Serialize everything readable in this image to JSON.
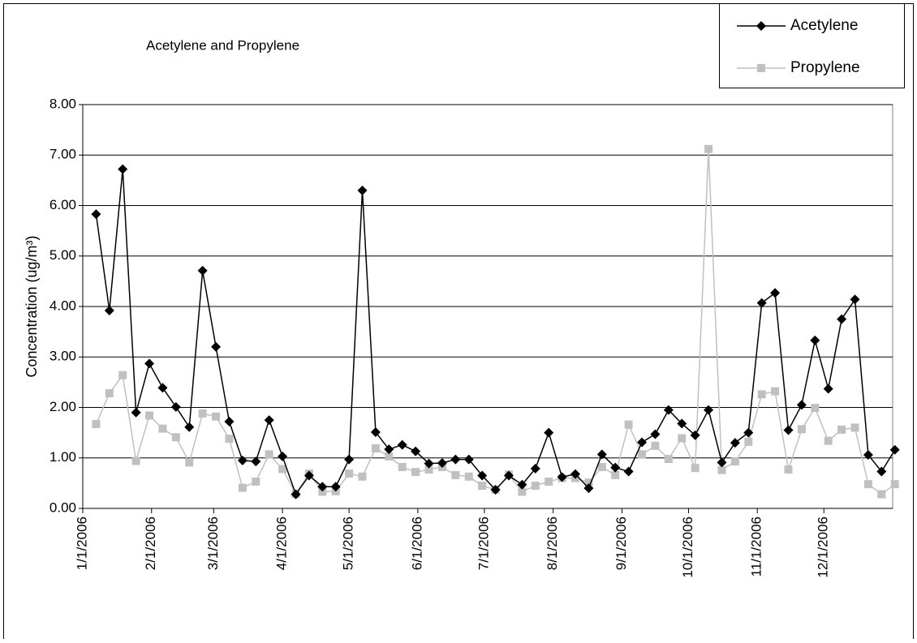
{
  "chart_data": {
    "type": "line",
    "title": "Acetylene and Propylene",
    "y_label": "Concentration (ug/m³)",
    "x": [
      "1/7/2006",
      "1/13/2006",
      "1/19/2006",
      "1/25/2006",
      "1/31/2006",
      "2/6/2006",
      "2/12/2006",
      "2/18/2006",
      "2/24/2006",
      "3/2/2006",
      "3/8/2006",
      "3/14/2006",
      "3/20/2006",
      "3/26/2006",
      "4/1/2006",
      "4/7/2006",
      "4/13/2006",
      "4/19/2006",
      "4/25/2006",
      "5/1/2006",
      "5/7/2006",
      "5/13/2006",
      "5/19/2006",
      "5/25/2006",
      "5/31/2006",
      "6/6/2006",
      "6/12/2006",
      "6/18/2006",
      "6/24/2006",
      "6/30/2006",
      "7/6/2006",
      "7/12/2006",
      "7/18/2006",
      "7/24/2006",
      "7/30/2006",
      "8/5/2006",
      "8/11/2006",
      "8/17/2006",
      "8/23/2006",
      "8/29/2006",
      "9/4/2006",
      "9/10/2006",
      "9/16/2006",
      "9/22/2006",
      "9/28/2006",
      "10/4/2006",
      "10/10/2006",
      "10/16/2006",
      "10/22/2006",
      "10/28/2006",
      "11/3/2006",
      "11/9/2006",
      "11/15/2006",
      "11/21/2006",
      "11/27/2006",
      "12/3/2006",
      "12/9/2006",
      "12/15/2006",
      "12/21/2006",
      "12/27/2006",
      "1/2/2007"
    ],
    "series": [
      {
        "name": "Acetylene",
        "color": "#000000",
        "marker": "diamond",
        "values": [
          5.83,
          3.92,
          6.72,
          1.9,
          2.87,
          2.39,
          2.01,
          1.61,
          4.71,
          3.2,
          1.72,
          0.95,
          0.93,
          1.75,
          1.03,
          0.28,
          0.65,
          0.43,
          0.43,
          0.97,
          6.3,
          1.51,
          1.17,
          1.26,
          1.13,
          0.89,
          0.9,
          0.97,
          0.97,
          0.65,
          0.37,
          0.65,
          0.47,
          0.79,
          1.5,
          0.62,
          0.68,
          0.4,
          1.07,
          0.81,
          0.73,
          1.31,
          1.47,
          1.95,
          1.68,
          1.45,
          1.95,
          0.91,
          1.3,
          1.5,
          4.07,
          4.27,
          1.55,
          2.05,
          3.33,
          2.37,
          3.75,
          4.14,
          1.06,
          0.73,
          1.16
        ]
      },
      {
        "name": "Propylene",
        "color": "#c0c0c0",
        "marker": "square",
        "values": [
          1.67,
          2.28,
          2.64,
          0.94,
          1.84,
          1.58,
          1.41,
          0.91,
          1.88,
          1.82,
          1.38,
          0.41,
          0.53,
          1.07,
          0.78,
          0.29,
          0.69,
          0.33,
          0.34,
          0.69,
          0.63,
          1.19,
          1.03,
          0.82,
          0.72,
          0.77,
          0.82,
          0.66,
          0.63,
          0.45,
          0.37,
          0.67,
          0.33,
          0.45,
          0.53,
          0.6,
          0.6,
          0.51,
          0.82,
          0.66,
          1.66,
          1.07,
          1.24,
          0.98,
          1.39,
          0.8,
          7.12,
          0.76,
          0.93,
          1.32,
          2.26,
          2.32,
          0.77,
          1.57,
          1.99,
          1.34,
          1.56,
          1.6,
          0.48,
          0.28,
          0.48
        ]
      }
    ],
    "xlim": [
      "1/1/2006",
      "1/1/2007"
    ],
    "xticks": [
      "1/1/2006",
      "2/1/2006",
      "3/1/2006",
      "4/1/2006",
      "5/1/2006",
      "6/1/2006",
      "7/1/2006",
      "8/1/2006",
      "9/1/2006",
      "10/1/2006",
      "11/1/2006",
      "12/1/2006"
    ],
    "ylim": [
      0,
      8
    ],
    "yticks": [
      {
        "value": 0,
        "label": "0.00"
      },
      {
        "value": 1,
        "label": "1.00"
      },
      {
        "value": 2,
        "label": "2.00"
      },
      {
        "value": 3,
        "label": "3.00"
      },
      {
        "value": 4,
        "label": "4.00"
      },
      {
        "value": 5,
        "label": "5.00"
      },
      {
        "value": 6,
        "label": "6.00"
      },
      {
        "value": 7,
        "label": "7.00"
      },
      {
        "value": 8,
        "label": "8.00"
      }
    ],
    "grid": true,
    "legend": "top-right"
  }
}
